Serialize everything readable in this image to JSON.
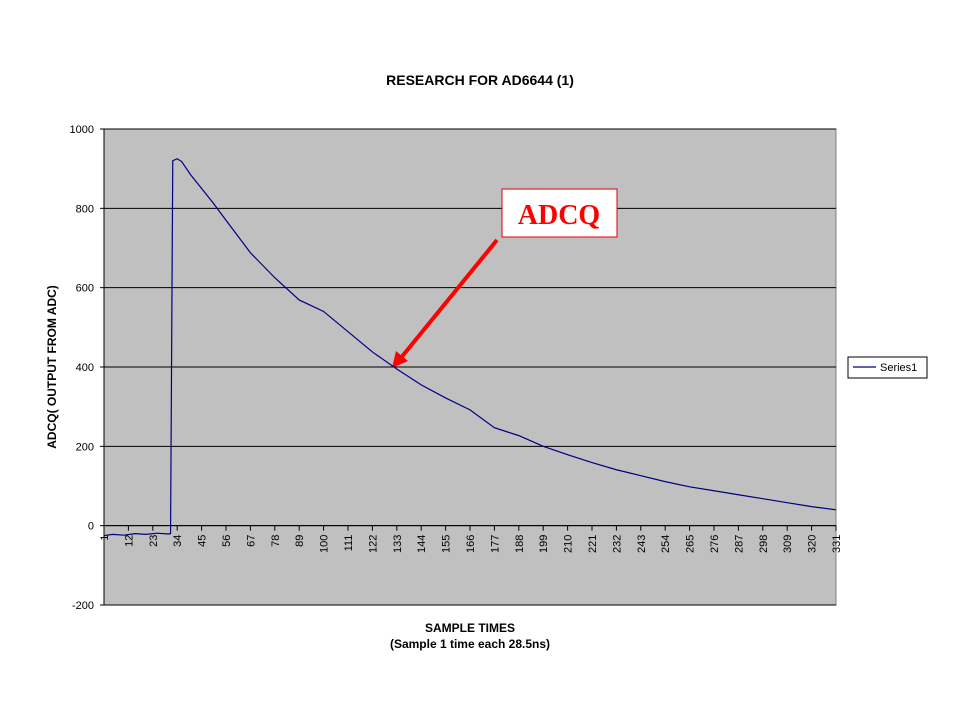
{
  "chart_data": {
    "type": "line",
    "title": "RESEARCH FOR AD6644 (1)",
    "x_label": [
      "SAMPLE TIMES",
      "(Sample 1 time each 28.5ns)"
    ],
    "y_label": "ADCQ( OUTPUT FROM ADC)",
    "annotation": "ADCQ",
    "x": [
      1,
      5,
      10,
      15,
      20,
      25,
      30,
      31,
      32,
      34,
      36,
      40,
      45,
      50,
      56,
      67,
      78,
      89,
      100,
      111,
      122,
      133,
      144,
      155,
      166,
      177,
      188,
      199,
      210,
      221,
      232,
      243,
      254,
      265,
      276,
      287,
      298,
      309,
      320,
      331
    ],
    "series": [
      {
        "name": "Series1",
        "color": "#000080",
        "values": [
          -25,
          -22,
          -24,
          -20,
          -22,
          -19,
          -21,
          -20,
          920,
          925,
          918,
          885,
          850,
          815,
          770,
          688,
          625,
          569,
          540,
          489,
          438,
          395,
          355,
          322,
          292,
          247,
          227,
          200,
          179,
          159,
          141,
          126,
          111,
          98,
          88,
          78,
          68,
          58,
          48,
          40
        ]
      }
    ],
    "xlim": [
      1,
      331
    ],
    "xticks": [
      1,
      12,
      23,
      34,
      45,
      56,
      67,
      78,
      89,
      100,
      111,
      122,
      133,
      144,
      155,
      166,
      177,
      188,
      199,
      210,
      221,
      232,
      243,
      254,
      265,
      276,
      287,
      298,
      309,
      320,
      331
    ],
    "ylim": [
      -200,
      1000
    ],
    "yticks": [
      -200,
      0,
      200,
      400,
      600,
      800,
      1000
    ],
    "grid": true,
    "legend": "right"
  }
}
